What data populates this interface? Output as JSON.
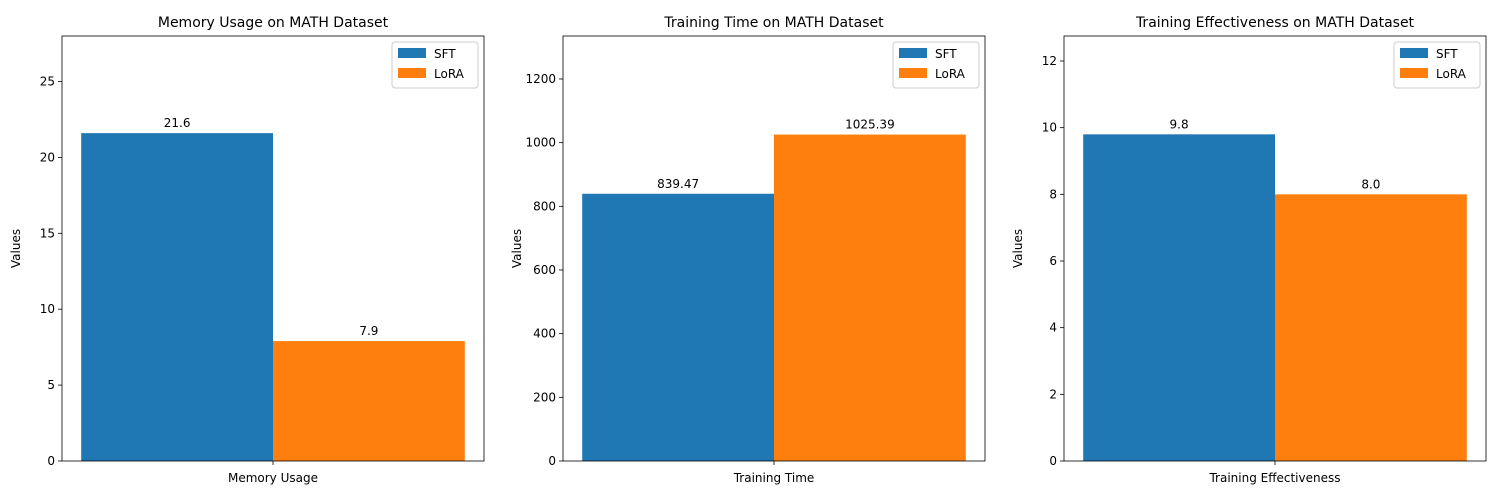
{
  "chart_data": [
    {
      "type": "bar",
      "title": "Memory Usage on MATH Dataset",
      "categories": [
        "Memory Usage"
      ],
      "ylabel": "Values",
      "ylim": [
        0,
        28
      ],
      "yticks": [
        0,
        5,
        10,
        15,
        20,
        25
      ],
      "series": [
        {
          "name": "SFT",
          "values": [
            21.6
          ],
          "labels": [
            "21.6"
          ],
          "color": "#1f77b4"
        },
        {
          "name": "LoRA",
          "values": [
            7.9
          ],
          "labels": [
            "7.9"
          ],
          "color": "#ff7f0e"
        }
      ],
      "legend": "top-right"
    },
    {
      "type": "bar",
      "title": "Training Time on MATH Dataset",
      "categories": [
        "Training Time"
      ],
      "ylabel": "Values",
      "ylim": [
        0,
        1335
      ],
      "yticks": [
        0,
        200,
        400,
        600,
        800,
        1000,
        1200
      ],
      "series": [
        {
          "name": "SFT",
          "values": [
            839.47
          ],
          "labels": [
            "839.47"
          ],
          "color": "#1f77b4"
        },
        {
          "name": "LoRA",
          "values": [
            1025.39
          ],
          "labels": [
            "1025.39"
          ],
          "color": "#ff7f0e"
        }
      ],
      "legend": "top-right"
    },
    {
      "type": "bar",
      "title": "Training Effectiveness on MATH Dataset",
      "categories": [
        "Training Effectiveness"
      ],
      "ylabel": "Values",
      "ylim": [
        0,
        12.75
      ],
      "yticks": [
        0,
        2,
        4,
        6,
        8,
        10,
        12
      ],
      "series": [
        {
          "name": "SFT",
          "values": [
            9.8
          ],
          "labels": [
            "9.8"
          ],
          "color": "#1f77b4"
        },
        {
          "name": "LoRA",
          "values": [
            8.0
          ],
          "labels": [
            "8.0"
          ],
          "color": "#ff7f0e"
        }
      ],
      "legend": "top-right"
    }
  ]
}
